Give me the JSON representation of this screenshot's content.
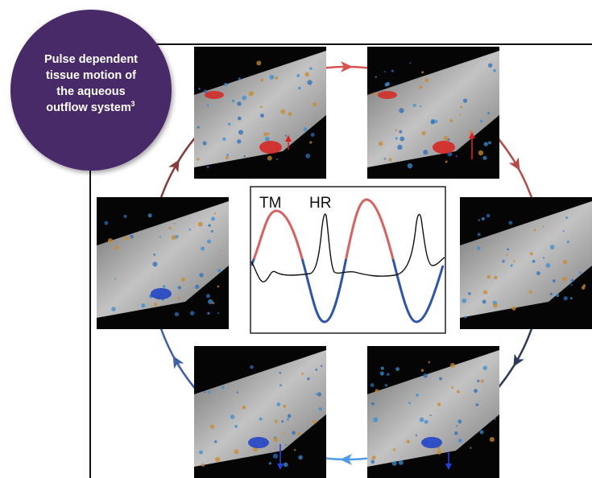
{
  "badge": {
    "lines": [
      "Pulse dependent",
      "tissue motion of",
      "the aqueous",
      "outflow system"
    ],
    "superscript": "3"
  },
  "graph": {
    "labels": [
      "TM",
      "HR"
    ]
  }
}
